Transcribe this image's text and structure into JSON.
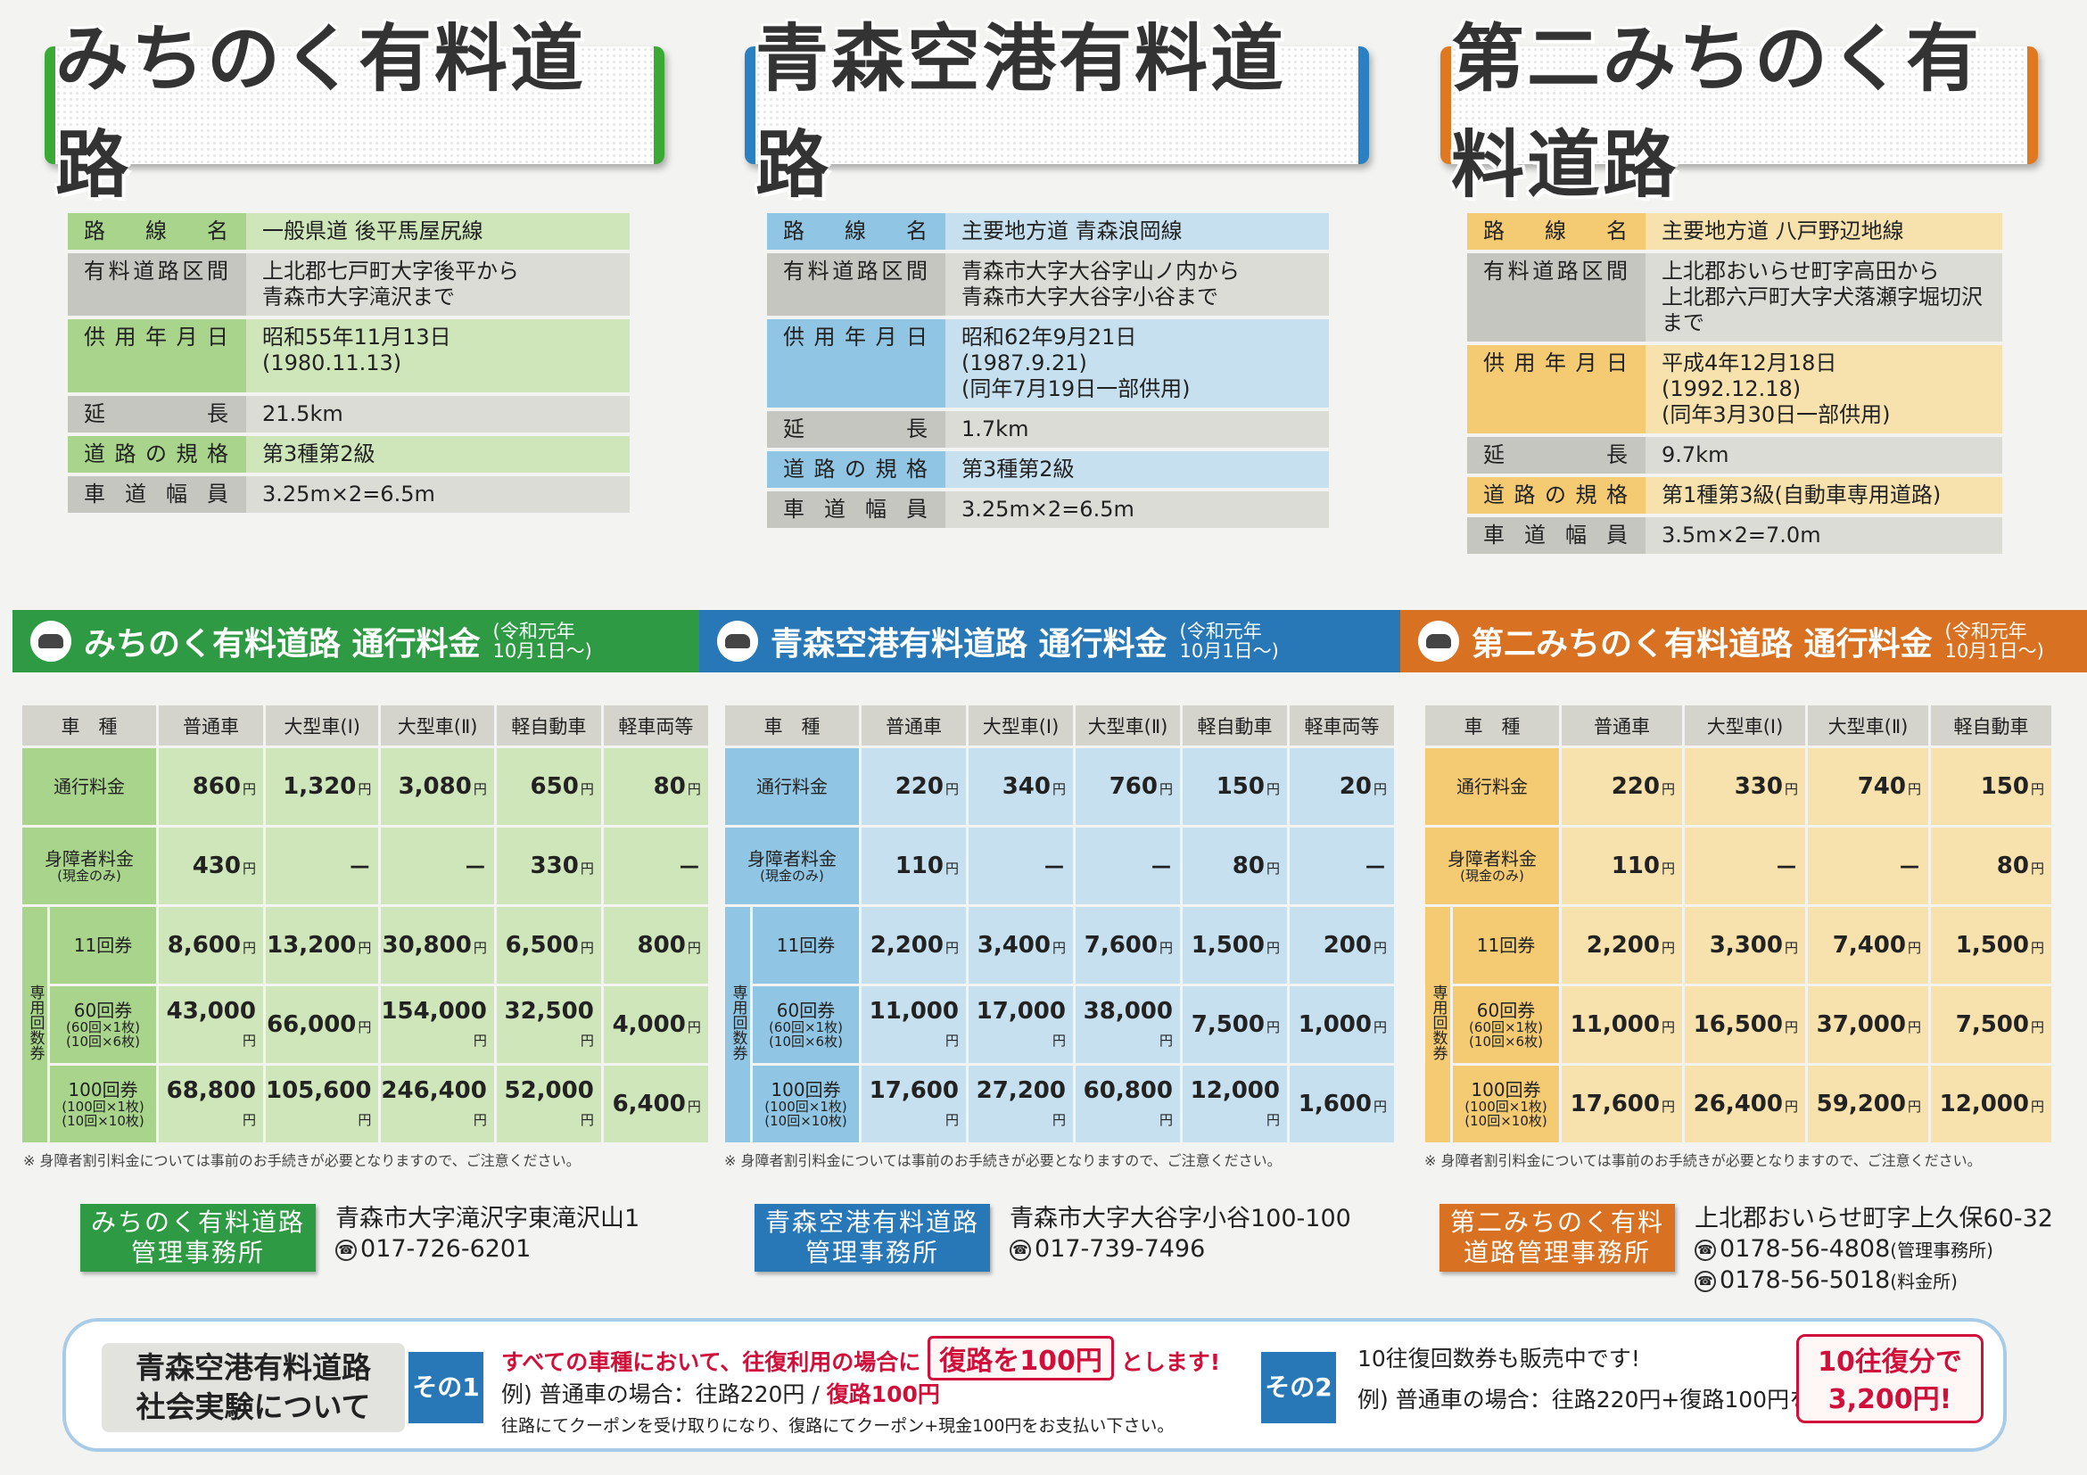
{
  "titles": {
    "michinoku": "みちのく有料道路",
    "aomori": "青森空港有料道路",
    "daini": "第二みちのく有料道路"
  },
  "info_labels": {
    "route": "路線名",
    "section": "有料道路区間",
    "opened": "供用年月日",
    "length": "延長",
    "standard": "道路の規格",
    "width": "車道幅員"
  },
  "info": {
    "michinoku": {
      "route": "一般県道 後平馬屋尻線",
      "section1": "上北郡七戸町大字後平から",
      "section2": "青森市大字滝沢まで",
      "opened1": "昭和55年11月13日",
      "opened2": "(1980.11.13)",
      "opened3": "",
      "length": "21.5km",
      "standard": "第3種第2級",
      "width": "3.25m×2=6.5m"
    },
    "aomori": {
      "route": "主要地方道 青森浪岡線",
      "section1": "青森市大字大谷字山ノ内から",
      "section2": "青森市大字大谷字小谷まで",
      "opened1": "昭和62年9月21日",
      "opened2": "(1987.9.21)",
      "opened3": "(同年7月19日一部供用)",
      "length": "1.7km",
      "standard": "第3種第2級",
      "width": "3.25m×2=6.5m"
    },
    "daini": {
      "route": "主要地方道 八戸野辺地線",
      "section1": "上北郡おいらせ町字高田から",
      "section2": "上北郡六戸町大字犬落瀬字堀切沢まで",
      "opened1": "平成4年12月18日",
      "opened2": "(1992.12.18)",
      "opened3": "(同年3月30日一部供用)",
      "length": "9.7km",
      "standard": "第1種第3級(自動車専用道路)",
      "width": "3.5m×2=7.0m"
    }
  },
  "bands": {
    "michinoku": "みちのく有料道路 通行料金",
    "aomori": "青森空港有料道路 通行料金",
    "daini": "第二みちのく有料道路 通行料金",
    "note1": "(令和元年",
    "note2": "10月1日～)"
  },
  "fee_headers": {
    "type": "車　種",
    "regular": "普通車",
    "large1": "大型車(Ⅰ)",
    "large2": "大型車(Ⅱ)",
    "kei": "軽自動車",
    "light": "軽車両等"
  },
  "fee_rows": {
    "toll": "通行料金",
    "disabled": "身障者料金",
    "disabled_note": "(現金のみ)",
    "coupon": "専用回数券",
    "c11": "11回券",
    "c60": "60回券",
    "c60_note1": "(60回×1枚)",
    "c60_note2": "(10回×6枚)",
    "c100": "100回券",
    "c100_note1": "(100回×1枚)",
    "c100_note2": "(10回×10枚)",
    "yen": "円"
  },
  "fees": {
    "michinoku": [
      [
        "860",
        "1,320",
        "3,080",
        "650",
        "80"
      ],
      [
        "430",
        "－",
        "－",
        "330",
        "－"
      ],
      [
        "8,600",
        "13,200",
        "30,800",
        "6,500",
        "800"
      ],
      [
        "43,000",
        "66,000",
        "154,000",
        "32,500",
        "4,000"
      ],
      [
        "68,800",
        "105,600",
        "246,400",
        "52,000",
        "6,400"
      ]
    ],
    "aomori": [
      [
        "220",
        "340",
        "760",
        "150",
        "20"
      ],
      [
        "110",
        "－",
        "－",
        "80",
        "－"
      ],
      [
        "2,200",
        "3,400",
        "7,600",
        "1,500",
        "200"
      ],
      [
        "11,000",
        "17,000",
        "38,000",
        "7,500",
        "1,000"
      ],
      [
        "17,600",
        "27,200",
        "60,800",
        "12,000",
        "1,600"
      ]
    ],
    "daini": [
      [
        "220",
        "330",
        "740",
        "150"
      ],
      [
        "110",
        "－",
        "－",
        "80"
      ],
      [
        "2,200",
        "3,300",
        "7,400",
        "1,500"
      ],
      [
        "11,000",
        "16,500",
        "37,000",
        "7,500"
      ],
      [
        "17,600",
        "26,400",
        "59,200",
        "12,000"
      ]
    ]
  },
  "footnote": "※ 身障者割引料金については事前のお手続きが必要となりますので、ご注意ください。",
  "offices": {
    "michinoku": {
      "name1": "みちのく有料道路",
      "name2": "管理事務所",
      "addr": "青森市大字滝沢字東滝沢山1",
      "tel": "017-726-6201"
    },
    "aomori": {
      "name1": "青森空港有料道路",
      "name2": "管理事務所",
      "addr": "青森市大字大谷字小谷100-100",
      "tel": "017-739-7496"
    },
    "daini": {
      "name1": "第二みちのく有料",
      "name2": "道路管理事務所",
      "addr": "上北郡おいらせ町字上久保60-32",
      "tel1": "0178-56-4808",
      "tel1_note": "(管理事務所)",
      "tel2": "0178-56-5018",
      "tel2_note": "(料金所)"
    }
  },
  "tel_icon": "☎",
  "experiment": {
    "head1": "青森空港有料道路",
    "head2": "社会実験について",
    "tag1": "その1",
    "line1a": "すべての車種において、往復利用の場合に",
    "line1box": "復路を100円",
    "line1b": "とします!",
    "line2a": "例) 普通車の場合：往路220円 / ",
    "line2b": "復路100円",
    "line3": "往路にてクーポンを受け取りになり、復路にてクーポン+現金100円をお支払い下さい。",
    "tag2": "その2",
    "line4": "10往復回数券も販売中です!",
    "line5": "例) 普通車の場合：往路220円+復路100円を",
    "big1": "10往復分で",
    "big2": "3,200円!"
  }
}
